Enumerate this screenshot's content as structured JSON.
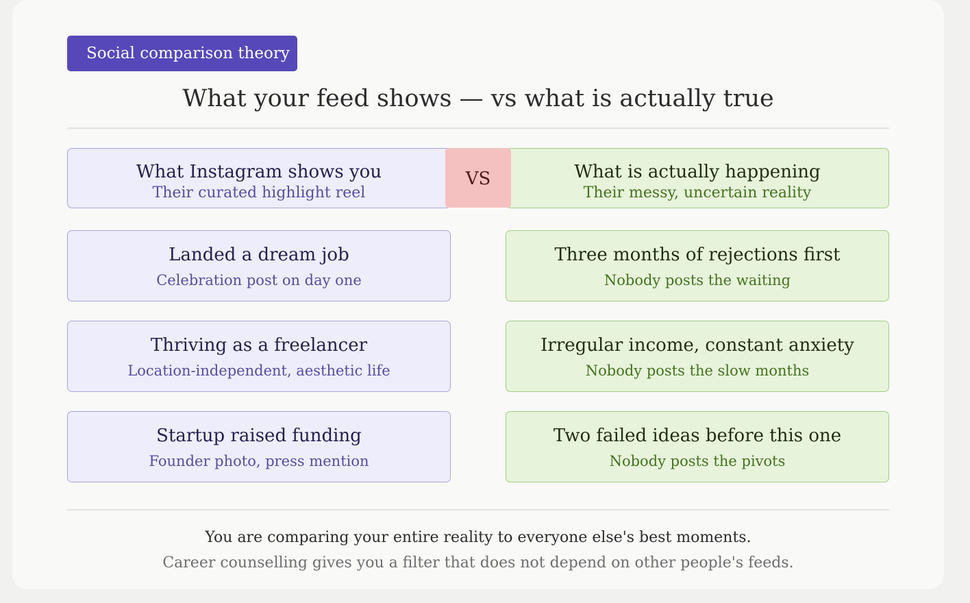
{
  "tag": "Social comparison theory",
  "title": "What your feed shows — vs what is actually true",
  "left_header": {
    "title": "What Instagram shows you",
    "subtitle": "Their curated highlight reel"
  },
  "vs_label": "VS",
  "right_header": {
    "title": "What is actually happening",
    "subtitle": "Their messy, uncertain reality"
  },
  "rows": [
    {
      "left": {
        "title": "Landed a dream job",
        "subtitle": "Celebration post on day one"
      },
      "right": {
        "title": "Three months of rejections first",
        "subtitle": "Nobody posts the waiting"
      }
    },
    {
      "left": {
        "title": "Thriving as a freelancer",
        "subtitle": "Location-independent, aesthetic life"
      },
      "right": {
        "title": "Irregular income, constant anxiety",
        "subtitle": "Nobody posts the slow months"
      }
    },
    {
      "left": {
        "title": "Startup raised funding",
        "subtitle": "Founder photo, press mention"
      },
      "right": {
        "title": "Two failed ideas before this one",
        "subtitle": "Nobody posts the pivots"
      }
    }
  ],
  "footer": {
    "line1": "You are comparing your entire reality to everyone else's best moments.",
    "line2": "Career counselling gives you a filter that does not depend on other people's feeds."
  },
  "colors": {
    "tag_bg": "#5648b8",
    "left_bg": "#eeedfb",
    "left_border": "#aaa4dc",
    "right_bg": "#e8f3dc",
    "right_border": "#9fcf80",
    "vs_bg": "#f4c0c0"
  }
}
